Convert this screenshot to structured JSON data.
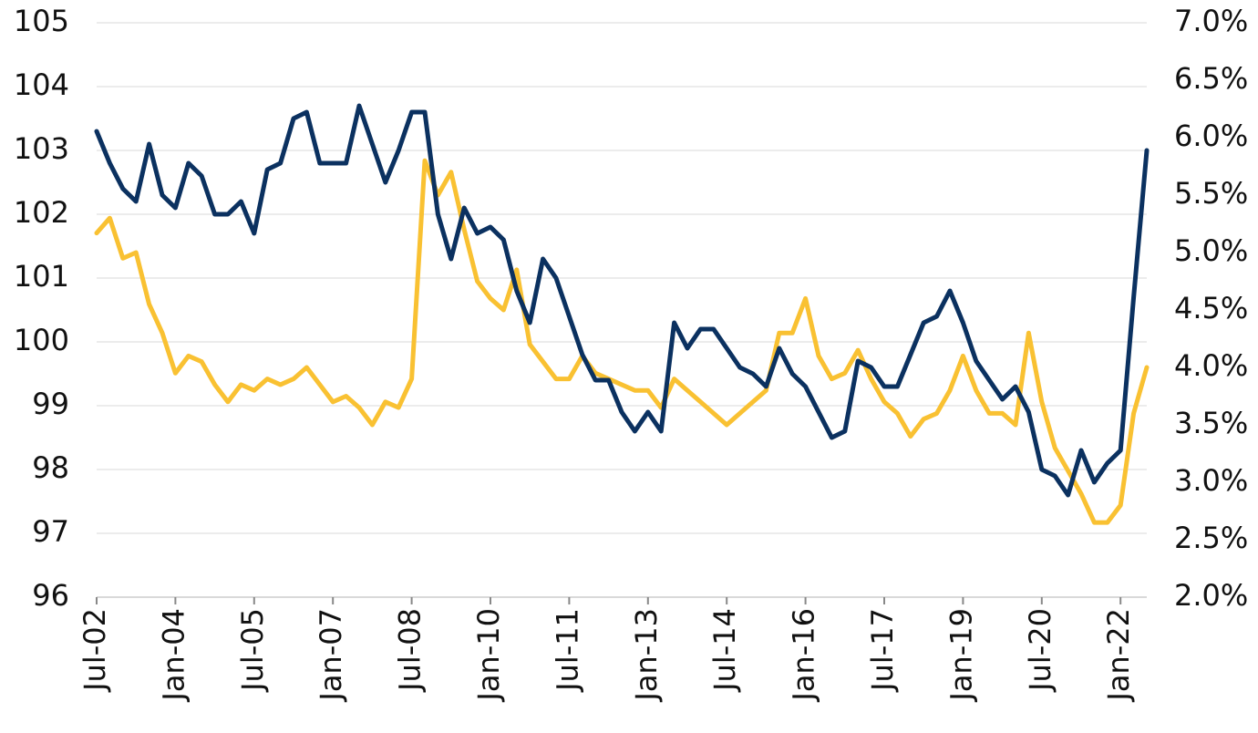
{
  "chart_data": {
    "type": "line",
    "categories": [
      "Jul-02",
      null,
      null,
      null,
      null,
      null,
      "Jan-04",
      null,
      null,
      null,
      null,
      null,
      "Jul-05",
      null,
      null,
      null,
      null,
      null,
      "Jan-07",
      null,
      null,
      null,
      null,
      null,
      "Jul-08",
      null,
      null,
      null,
      null,
      null,
      "Jan-10",
      null,
      null,
      null,
      null,
      null,
      "Jul-11",
      null,
      null,
      null,
      null,
      null,
      "Jan-13",
      null,
      null,
      null,
      null,
      null,
      "Jul-14",
      null,
      null,
      null,
      null,
      null,
      "Jan-16",
      null,
      null,
      null,
      null,
      null,
      "Jul-17",
      null,
      null,
      null,
      null,
      null,
      "Jan-19",
      null,
      null,
      null,
      null,
      null,
      "Jul-20",
      null,
      null,
      null,
      null,
      null,
      "Jan-22",
      null,
      null
    ],
    "series": [
      {
        "color": "#0b3160",
        "axis": "y",
        "values": [
          103.3,
          102.8,
          102.4,
          102.2,
          103.1,
          102.3,
          102.1,
          102.8,
          102.6,
          102.0,
          102.0,
          102.2,
          101.7,
          102.7,
          102.8,
          103.5,
          103.6,
          102.8,
          102.8,
          102.8,
          103.7,
          103.1,
          102.5,
          103.0,
          103.6,
          103.6,
          102.0,
          101.3,
          102.1,
          101.7,
          101.8,
          101.6,
          100.8,
          100.3,
          101.3,
          101.0,
          100.4,
          99.8,
          99.4,
          99.4,
          98.9,
          98.6,
          98.9,
          98.6,
          100.3,
          99.9,
          100.2,
          100.2,
          99.9,
          99.6,
          99.5,
          99.3,
          99.9,
          99.5,
          99.3,
          98.9,
          98.5,
          98.6,
          99.7,
          99.6,
          99.3,
          99.3,
          99.8,
          100.3,
          100.4,
          100.8,
          100.3,
          99.7,
          99.4,
          99.1,
          99.3,
          98.9,
          98.0,
          97.9,
          97.6,
          98.3,
          97.8,
          98.1,
          98.3,
          100.7,
          103.0
        ]
      },
      {
        "color": "#f9c132",
        "axis": "y2",
        "values": [
          5.17,
          5.3,
          4.95,
          5.0,
          4.55,
          4.3,
          3.95,
          4.1,
          4.05,
          3.85,
          3.7,
          3.85,
          3.8,
          3.9,
          3.85,
          3.9,
          4.0,
          3.85,
          3.7,
          3.75,
          3.65,
          3.5,
          3.7,
          3.65,
          3.9,
          5.8,
          5.5,
          5.7,
          5.2,
          4.75,
          4.6,
          4.5,
          4.85,
          4.2,
          4.05,
          3.9,
          3.9,
          4.1,
          3.95,
          3.9,
          3.85,
          3.8,
          3.8,
          3.65,
          3.9,
          3.8,
          3.7,
          3.6,
          3.5,
          3.6,
          3.7,
          3.8,
          4.3,
          4.3,
          4.6,
          4.1,
          3.9,
          3.95,
          4.15,
          3.9,
          3.7,
          3.6,
          3.4,
          3.55,
          3.6,
          3.8,
          4.1,
          3.8,
          3.6,
          3.6,
          3.5,
          4.3,
          3.7,
          3.3,
          3.1,
          2.9,
          2.65,
          2.65,
          2.8,
          3.6,
          4.0
        ]
      }
    ],
    "ylim": [
      96,
      105
    ],
    "yticks": [
      96,
      97,
      98,
      99,
      100,
      101,
      102,
      103,
      104,
      105
    ],
    "y2lim": [
      2,
      7
    ],
    "y2ticks": [
      {
        "value": 2,
        "label": "2.0%"
      },
      {
        "value": 2.5,
        "label": "2.5%"
      },
      {
        "value": 3,
        "label": "3.0%"
      },
      {
        "value": 3.5,
        "label": "3.5%"
      },
      {
        "value": 4,
        "label": "4.0%"
      },
      {
        "value": 4.5,
        "label": "4.5%"
      },
      {
        "value": 5,
        "label": "5.0%"
      },
      {
        "value": 5.5,
        "label": "5.5%"
      },
      {
        "value": 6,
        "label": "6.0%"
      },
      {
        "value": 6.5,
        "label": "6.5%"
      },
      {
        "value": 7,
        "label": "7.0%"
      }
    ],
    "grid": true
  }
}
